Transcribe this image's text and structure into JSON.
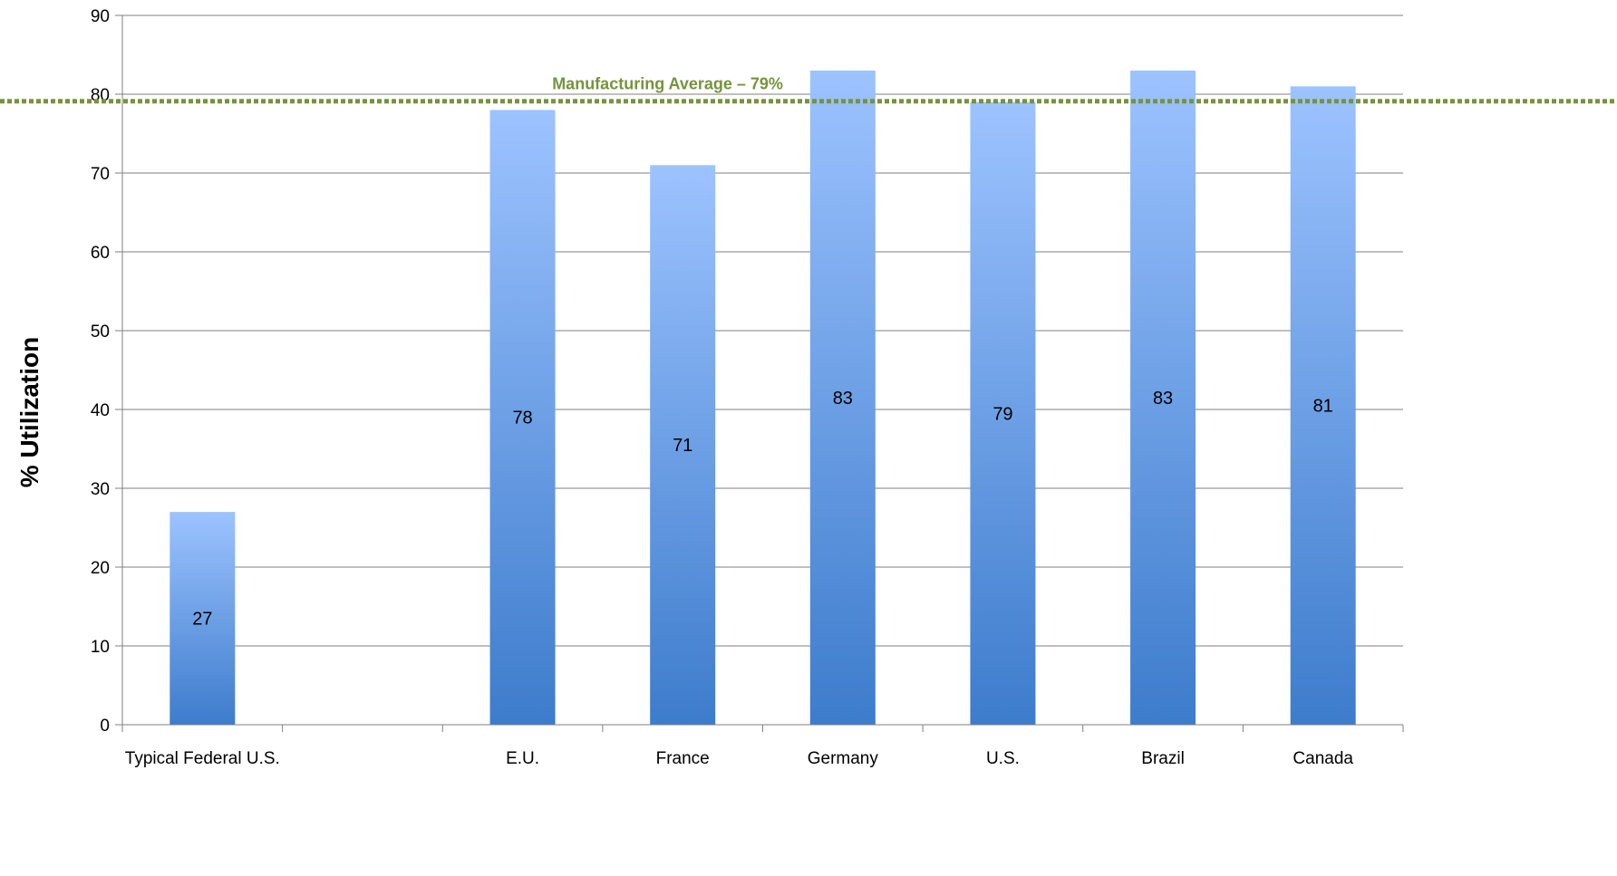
{
  "chart_data": {
    "type": "bar",
    "title": "",
    "xlabel": "",
    "ylabel": "% Utilization",
    "ylim": [
      0,
      90
    ],
    "yticks": [
      0,
      10,
      20,
      30,
      40,
      50,
      60,
      70,
      80,
      90
    ],
    "grid": true,
    "categories": [
      "Typical Federal U.S.",
      "",
      "E.U.",
      "France",
      "Germany",
      "U.S.",
      "Brazil",
      "Canada"
    ],
    "values": [
      27,
      null,
      78,
      71,
      83,
      79,
      83,
      81
    ],
    "data_labels": [
      "27",
      "",
      "78",
      "71",
      "83",
      "79",
      "83",
      "81"
    ],
    "reference_line": {
      "label": "Manufacturing Average – 79%",
      "value": 79,
      "color": "#77933c",
      "style": "dotted"
    },
    "colors": {
      "bar_top": "#9dc3ff",
      "bar_bottom": "#3d7ccc",
      "grid": "#7f7f7f",
      "axis": "#7f7f7f"
    }
  }
}
